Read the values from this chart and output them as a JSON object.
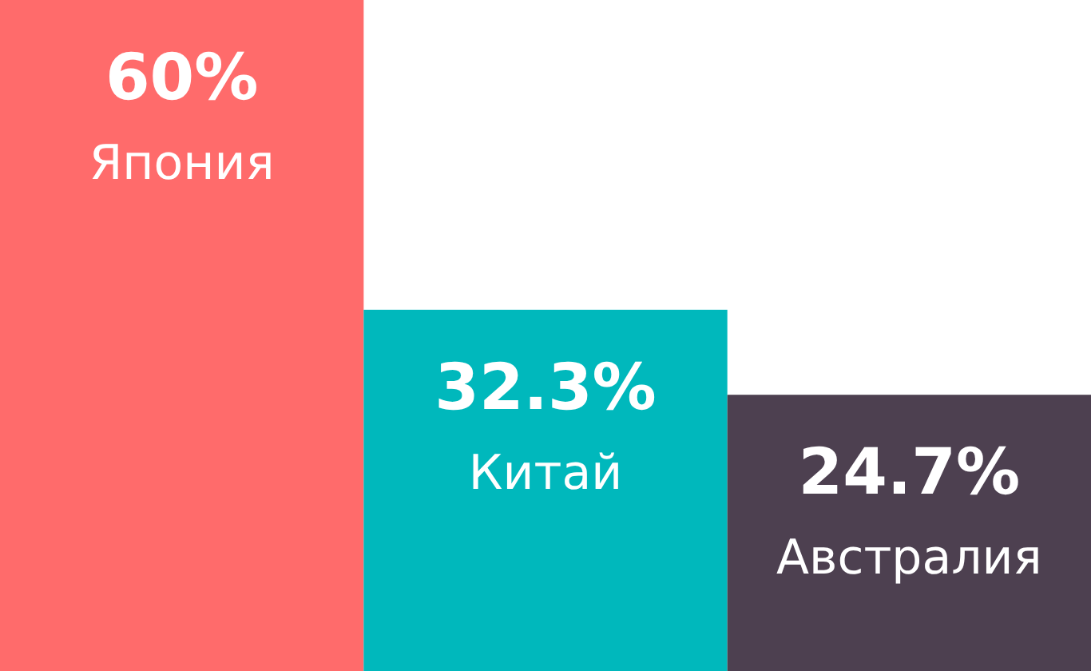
{
  "chart_data": {
    "type": "bar",
    "categories": [
      "Япония",
      "Китай",
      "Австралия"
    ],
    "values": [
      60,
      32.3,
      24.7
    ],
    "colors": [
      "#ff6b6b",
      "#00b8bc",
      "#4d4050"
    ],
    "value_labels": [
      "60%",
      "32.3%",
      "24.7%"
    ]
  }
}
